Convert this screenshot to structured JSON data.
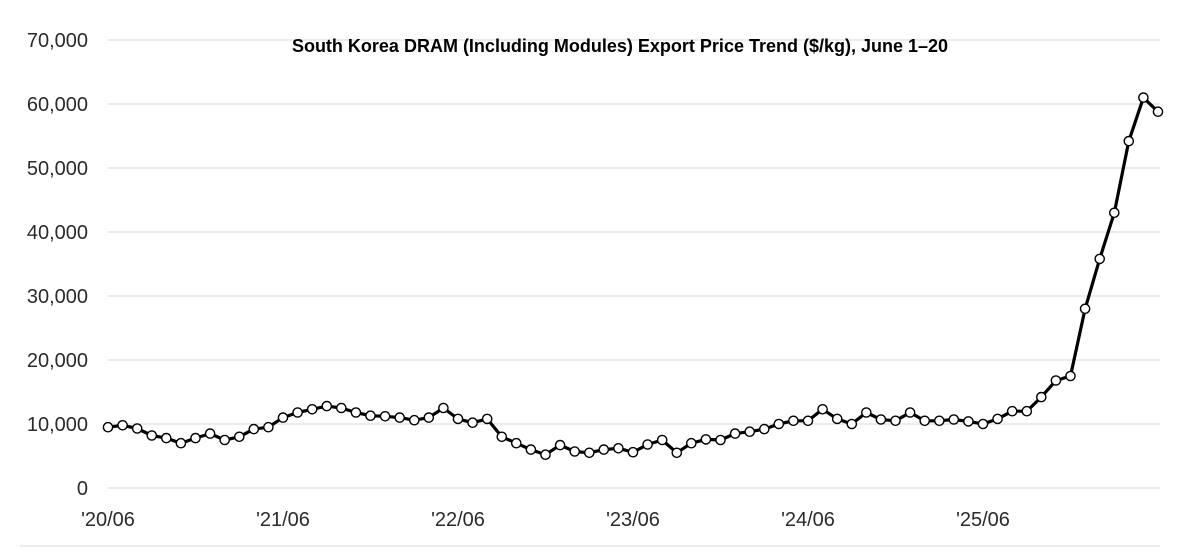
{
  "chart_data": {
    "type": "line",
    "title": "South Korea DRAM (Including Modules) Export Price Trend ($/kg), June 1–20",
    "xlabel": "",
    "ylabel": "",
    "ylim": [
      0,
      70000
    ],
    "yticks": [
      "0",
      "10,000",
      "20,000",
      "30,000",
      "40,000",
      "50,000",
      "60,000",
      "70,000"
    ],
    "xticks": [
      "'20/06",
      "'21/06",
      "'22/06",
      "'23/06",
      "'24/06",
      "'25/06"
    ],
    "grid": true,
    "legend": "none",
    "line_color": "#000000",
    "marker_fill": "#ffffff",
    "x": [
      "2020-06",
      "2020-07",
      "2020-08",
      "2020-09",
      "2020-10",
      "2020-11",
      "2020-12",
      "2021-01",
      "2021-02",
      "2021-03",
      "2021-04",
      "2021-05",
      "2021-06",
      "2021-07",
      "2021-08",
      "2021-09",
      "2021-10",
      "2021-11",
      "2021-12",
      "2022-01",
      "2022-02",
      "2022-03",
      "2022-04",
      "2022-05",
      "2022-06",
      "2022-07",
      "2022-08",
      "2022-09",
      "2022-10",
      "2022-11",
      "2022-12",
      "2023-01",
      "2023-02",
      "2023-03",
      "2023-04",
      "2023-05",
      "2023-06",
      "2023-07",
      "2023-08",
      "2023-09",
      "2023-10",
      "2023-11",
      "2023-12",
      "2024-01",
      "2024-02",
      "2024-03",
      "2024-04",
      "2024-05",
      "2024-06",
      "2024-07",
      "2024-08",
      "2024-09",
      "2024-10",
      "2024-11",
      "2024-12",
      "2025-01",
      "2025-02",
      "2025-03",
      "2025-04",
      "2025-05",
      "2025-06",
      "2025-07",
      "2025-08",
      "2025-09",
      "2025-10",
      "2025-11",
      "2025-12",
      "2026-01",
      "2026-02",
      "2026-03",
      "2026-04",
      "2026-05",
      "2026-06"
    ],
    "series": [
      {
        "values": [
          9500,
          9800,
          9300,
          8200,
          7800,
          7000,
          7800,
          8500,
          7500,
          8000,
          9200,
          9500,
          11000,
          11800,
          12300,
          12800,
          12500,
          11800,
          11300,
          11200,
          11000,
          10600,
          11000,
          12500,
          10800,
          10200,
          10800,
          8000,
          7000,
          6000,
          5200,
          6700,
          5700,
          5500,
          6000,
          6200,
          5600,
          6800,
          7500,
          5500,
          7000,
          7600,
          7500,
          8500,
          8800,
          9200,
          10000,
          10500,
          10500,
          12300,
          10800,
          10000,
          11800,
          10700,
          10500,
          11800,
          10500,
          10500,
          10700,
          10400,
          10000,
          10800,
          12000,
          12000,
          14200,
          16800,
          17500,
          28000,
          35800,
          43000,
          54200,
          61000,
          58800
        ]
      }
    ]
  }
}
